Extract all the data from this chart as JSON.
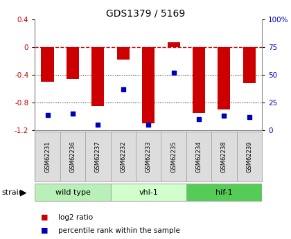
{
  "title": "GDS1379 / 5169",
  "samples": [
    "GSM62231",
    "GSM62236",
    "GSM62237",
    "GSM62232",
    "GSM62233",
    "GSM62235",
    "GSM62234",
    "GSM62238",
    "GSM62239"
  ],
  "log2_ratio": [
    -0.5,
    -0.46,
    -0.85,
    -0.18,
    -1.1,
    0.07,
    -0.95,
    -0.9,
    -0.52
  ],
  "percentile_rank": [
    14,
    15,
    5,
    37,
    5,
    52,
    10,
    13,
    12
  ],
  "groups": [
    {
      "label": "wild type",
      "start": 0,
      "end": 3,
      "color": "#b8f0b8"
    },
    {
      "label": "vhl-1",
      "start": 3,
      "end": 6,
      "color": "#d0ffcc"
    },
    {
      "label": "hif-1",
      "start": 6,
      "end": 9,
      "color": "#55cc55"
    }
  ],
  "ylim_left": [
    -1.2,
    0.4
  ],
  "ylim_right": [
    0,
    100
  ],
  "yticks_left": [
    -1.2,
    -0.8,
    -0.4,
    0.0,
    0.4
  ],
  "yticks_right": [
    0,
    25,
    50,
    75,
    100
  ],
  "yticklabels_right": [
    "0",
    "25",
    "50",
    "75",
    "100%"
  ],
  "bar_color": "#cc0000",
  "dot_color": "#0000bb",
  "zero_line_color": "#cc0000",
  "bg_color": "#ffffff",
  "tick_bg": "#dddddd",
  "legend_items": [
    {
      "color": "#cc0000",
      "label": "log2 ratio"
    },
    {
      "color": "#0000bb",
      "label": "percentile rank within the sample"
    }
  ]
}
